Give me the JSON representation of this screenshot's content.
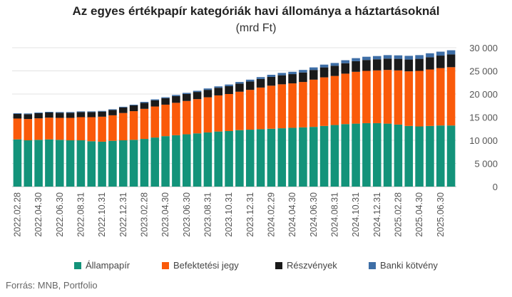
{
  "chart_data": {
    "type": "bar",
    "stacked": true,
    "title": "Az egyes értékpapír kategóriák havi állománya a háztartásoknál",
    "subtitle": "(mrd Ft)",
    "ylim": [
      0,
      30000
    ],
    "yticks": [
      0,
      5000,
      10000,
      15000,
      20000,
      25000,
      30000
    ],
    "ytick_labels": [
      "0",
      "5 000",
      "10 000",
      "15 000",
      "20 000",
      "25 000",
      "30 000"
    ],
    "grid": true,
    "legend_position": "bottom",
    "categories": [
      "2022.02.28",
      "2022.03.31",
      "2022.04.30",
      "2022.05.31",
      "2022.06.30",
      "2022.07.31",
      "2022.08.31",
      "2022.09.30",
      "2022.10.31",
      "2022.11.30",
      "2022.12.31",
      "2023.01.31",
      "2023.02.28",
      "2023.03.31",
      "2023.04.30",
      "2023.05.31",
      "2023.06.30",
      "2023.07.31",
      "2023.08.31",
      "2023.09.30",
      "2023.10.31",
      "2023.11.30",
      "2023.12.31",
      "2024.01.31",
      "2024.02.29",
      "2024.03.31",
      "2024.04.30",
      "2024.05.31",
      "2024.06.30",
      "2024.07.31",
      "2024.08.31",
      "2024.09.30",
      "2024.10.31",
      "2024.11.30",
      "2024.12.31",
      "2025.01.31",
      "2025.02.28",
      "2025.03.31",
      "2025.04.30",
      "2025.05.31",
      "2025.06.30",
      "2025.07.31"
    ],
    "visible_tick_labels": [
      "2022.02.28",
      "2022.04.30",
      "2022.06.30",
      "2022.08.31",
      "2022.10.31",
      "2022.12.31",
      "2023.02.28",
      "2023.04.30",
      "2023.06.30",
      "2023.08.31",
      "2023.10.31",
      "2023.12.31",
      "2024.02.29",
      "2024.04.30",
      "2024.06.30",
      "2024.08.31",
      "2024.10.31",
      "2024.12.31",
      "2025.02.28",
      "2025.04.30",
      "2025.06.30"
    ],
    "series": [
      {
        "name": "Állampapír",
        "color": "#13937a",
        "values": [
          10200,
          10000,
          10100,
          10200,
          10100,
          10000,
          10000,
          9800,
          9700,
          9900,
          10000,
          10100,
          10300,
          10600,
          10900,
          11100,
          11300,
          11500,
          11700,
          11900,
          12000,
          12200,
          12300,
          12400,
          12500,
          12600,
          12700,
          12800,
          12900,
          13100,
          13300,
          13500,
          13600,
          13700,
          13700,
          13600,
          13400,
          13100,
          13000,
          13100,
          13200,
          13200
        ]
      },
      {
        "name": "Befektetési jegy",
        "color": "#fa5a0a",
        "values": [
          4500,
          4600,
          4650,
          4700,
          4750,
          4850,
          5000,
          5200,
          5400,
          5500,
          5900,
          6200,
          6500,
          6700,
          6800,
          7000,
          7200,
          7400,
          7600,
          7800,
          8000,
          8300,
          8600,
          9000,
          9300,
          9500,
          9600,
          9800,
          10200,
          10500,
          10600,
          10900,
          11200,
          11300,
          11400,
          11600,
          11700,
          11800,
          12000,
          12200,
          12400,
          12600
        ]
      },
      {
        "name": "Részvények",
        "color": "#1a1a1a",
        "values": [
          1000,
          1050,
          1100,
          1100,
          1100,
          1100,
          1100,
          1100,
          1100,
          1150,
          1200,
          1250,
          1300,
          1350,
          1400,
          1450,
          1500,
          1550,
          1600,
          1650,
          1700,
          1750,
          1800,
          1850,
          1900,
          1950,
          2000,
          2050,
          2100,
          2150,
          2200,
          2250,
          2300,
          2350,
          2400,
          2450,
          2500,
          2550,
          2600,
          2650,
          2700,
          2750
        ]
      },
      {
        "name": "Banki kötvény",
        "color": "#3e6ea6",
        "values": [
          150,
          150,
          150,
          150,
          150,
          150,
          150,
          150,
          150,
          150,
          150,
          150,
          200,
          200,
          200,
          250,
          250,
          250,
          300,
          300,
          350,
          350,
          400,
          400,
          450,
          500,
          500,
          550,
          550,
          600,
          600,
          650,
          650,
          700,
          700,
          750,
          750,
          800,
          800,
          850,
          850,
          900
        ]
      }
    ]
  },
  "legend": {
    "items": [
      "Állampapír",
      "Befektetési jegy",
      "Részvények",
      "Banki kötvény"
    ]
  },
  "source_note": "Forrás: MNB, Portfolio"
}
